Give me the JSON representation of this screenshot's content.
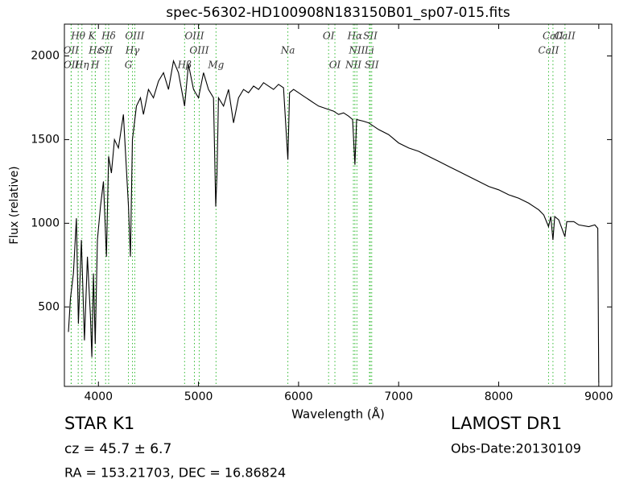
{
  "chart_data": {
    "type": "line",
    "title": "spec-56302-HD100908N183150B01_sp07-015.fits",
    "xlabel": "Wavelength (Å)",
    "ylabel": "Flux (relative)",
    "xlim": [
      3660,
      9130
    ],
    "ylim": [
      25,
      2190
    ],
    "xticks": [
      4000,
      5000,
      6000,
      7000,
      8000,
      9000
    ],
    "yticks": [
      500,
      1000,
      1500,
      2000
    ],
    "x": [
      3700,
      3720,
      3750,
      3780,
      3800,
      3830,
      3860,
      3890,
      3920,
      3934,
      3950,
      3968,
      3990,
      4020,
      4050,
      4080,
      4102,
      4130,
      4160,
      4200,
      4250,
      4300,
      4320,
      4340,
      4380,
      4420,
      4450,
      4500,
      4550,
      4600,
      4650,
      4700,
      4750,
      4800,
      4861,
      4900,
      4950,
      5000,
      5050,
      5100,
      5150,
      5172,
      5185,
      5200,
      5250,
      5300,
      5350,
      5400,
      5450,
      5500,
      5550,
      5600,
      5650,
      5700,
      5750,
      5800,
      5850,
      5893,
      5910,
      5950,
      6000,
      6050,
      6100,
      6150,
      6200,
      6250,
      6300,
      6350,
      6400,
      6450,
      6500,
      6540,
      6563,
      6580,
      6650,
      6700,
      6800,
      6900,
      7000,
      7100,
      7200,
      7300,
      7400,
      7500,
      7600,
      7700,
      7800,
      7900,
      8000,
      8100,
      8200,
      8300,
      8400,
      8450,
      8498,
      8520,
      8542,
      8560,
      8600,
      8662,
      8680,
      8750,
      8800,
      8900,
      8960,
      8990,
      9000
    ],
    "series": [
      {
        "color": "#000000",
        "values": [
          350,
          550,
          700,
          1030,
          400,
          900,
          300,
          800,
          450,
          200,
          700,
          280,
          900,
          1100,
          1250,
          800,
          1400,
          1300,
          1500,
          1450,
          1650,
          1100,
          800,
          1500,
          1700,
          1750,
          1650,
          1800,
          1750,
          1850,
          1900,
          1800,
          1970,
          1900,
          1700,
          1950,
          1800,
          1750,
          1900,
          1800,
          1750,
          1100,
          1300,
          1750,
          1700,
          1800,
          1600,
          1750,
          1800,
          1780,
          1820,
          1800,
          1840,
          1820,
          1800,
          1830,
          1810,
          1380,
          1780,
          1800,
          1780,
          1760,
          1740,
          1720,
          1700,
          1690,
          1680,
          1670,
          1650,
          1660,
          1640,
          1620,
          1350,
          1620,
          1610,
          1600,
          1560,
          1530,
          1480,
          1450,
          1430,
          1400,
          1370,
          1340,
          1310,
          1280,
          1250,
          1220,
          1200,
          1170,
          1150,
          1120,
          1080,
          1050,
          980,
          1040,
          900,
          1040,
          1020,
          920,
          1010,
          1010,
          990,
          980,
          990,
          970,
          50
        ]
      }
    ],
    "line_marker_color": "#33bb33",
    "spectral_lines": [
      {
        "label": "Hθ",
        "x": 3798
      },
      {
        "label": "OII",
        "x": 3727
      },
      {
        "label": "OII",
        "x": 3729
      },
      {
        "label": "K",
        "x": 3934
      },
      {
        "label": "Hε",
        "x": 3970
      },
      {
        "label": "Hη",
        "x": 3835
      },
      {
        "label": "Hδ",
        "x": 4102
      },
      {
        "label": "SII",
        "x": 4072
      },
      {
        "label": "H",
        "x": 3968
      },
      {
        "label": "OIII",
        "x": 4363
      },
      {
        "label": "Hγ",
        "x": 4340
      },
      {
        "label": "G",
        "x": 4300
      },
      {
        "label": "OIII",
        "x": 4959
      },
      {
        "label": "OIII",
        "x": 5007
      },
      {
        "label": "Hβ",
        "x": 4861
      },
      {
        "label": "OI",
        "x": 6300
      },
      {
        "label": "Na",
        "x": 5893
      },
      {
        "label": "Mg",
        "x": 5175
      },
      {
        "label": "Hα",
        "x": 6563
      },
      {
        "label": "NII",
        "x": 6583
      },
      {
        "label": "OI",
        "x": 6363
      },
      {
        "label": "SII",
        "x": 6717
      },
      {
        "label": "Li",
        "x": 6708
      },
      {
        "label": "NII",
        "x": 6548
      },
      {
        "label": "CaII",
        "x": 8542
      },
      {
        "label": "CaII",
        "x": 8498
      },
      {
        "label": "SII",
        "x": 6731
      },
      {
        "label": "CaII",
        "x": 8662
      }
    ],
    "info_left": [
      "STAR   K1",
      "cz = 45.7 ± 6.7",
      "RA = 153.21703, DEC = 16.86824"
    ],
    "info_right": [
      "LAMOST DR1",
      "Obs-Date:20130109"
    ]
  }
}
